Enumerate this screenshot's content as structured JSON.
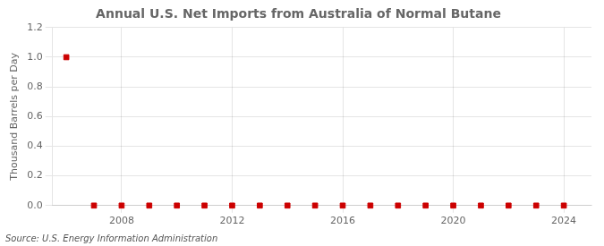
{
  "chart_data": {
    "type": "scatter",
    "title": "Annual U.S. Net Imports from Australia of Normal Butane",
    "ylabel": "Thousand Barrels per Day",
    "annotation": "Source: U.S. Energy Information Administration",
    "x": [
      2006,
      2007,
      2008,
      2009,
      2010,
      2011,
      2012,
      2013,
      2014,
      2015,
      2016,
      2017,
      2018,
      2019,
      2020,
      2021,
      2022,
      2023,
      2024
    ],
    "values": [
      1.0,
      0.0,
      0.0,
      0.0,
      0.0,
      0.0,
      0.0,
      0.0,
      0.0,
      0.0,
      0.0,
      0.0,
      0.0,
      0.0,
      0.0,
      0.0,
      0.0,
      0.0,
      0.0
    ],
    "color": "#cc0000",
    "marker": "square",
    "xlim": [
      2005.5,
      2025
    ],
    "xticks": [
      {
        "value": 2008,
        "label": "2008"
      },
      {
        "value": 2012,
        "label": "2012"
      },
      {
        "value": 2016,
        "label": "2016"
      },
      {
        "value": 2020,
        "label": "2020"
      },
      {
        "value": 2024,
        "label": "2024"
      }
    ],
    "ylim": [
      0.0,
      1.2
    ],
    "yticks": [
      {
        "value": 0.0,
        "label": "0.0"
      },
      0.2,
      0.4,
      0.6,
      0.8,
      {
        "value": 1.0,
        "label": "1.0"
      },
      1.2
    ],
    "grid": true
  }
}
